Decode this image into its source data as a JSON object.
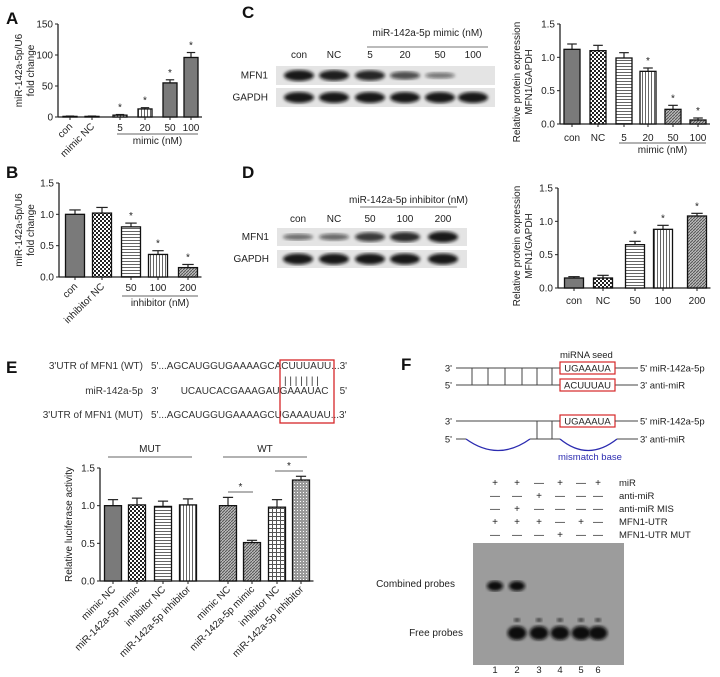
{
  "panels": {
    "A": "A",
    "B": "B",
    "C": "C",
    "D": "D",
    "E": "E",
    "F": "F"
  },
  "chart_data": [
    {
      "id": "A",
      "type": "bar",
      "ylabel": [
        "miR-142a-5p/U6",
        "fold change"
      ],
      "ylim": [
        0,
        150
      ],
      "yticks": [
        "0",
        "50",
        "100",
        "150"
      ],
      "categories": [
        "con",
        "mimic NC",
        "5",
        "20",
        "50",
        "100"
      ],
      "group_label": "mimic (nM)",
      "values": [
        1,
        1,
        3,
        13,
        55,
        96
      ],
      "errors": [
        0.5,
        0.5,
        1,
        2,
        5,
        8
      ],
      "significant": [
        false,
        false,
        true,
        true,
        true,
        true
      ],
      "fill_patterns": [
        "solid",
        "solid",
        "vlines",
        "vlines",
        "solid",
        "solid"
      ]
    },
    {
      "id": "B",
      "type": "bar",
      "ylabel": [
        "miR-142a-5p/U6",
        "fold change"
      ],
      "ylim": [
        0,
        1.5
      ],
      "yticks": [
        "0.0",
        "0.5",
        "1.0",
        "1.5"
      ],
      "categories": [
        "con",
        "inhibitor NC",
        "50",
        "100",
        "200"
      ],
      "group_label": "inhibitor (nM)",
      "values": [
        1.0,
        1.02,
        0.8,
        0.36,
        0.15
      ],
      "errors": [
        0.07,
        0.09,
        0.06,
        0.06,
        0.05
      ],
      "significant": [
        false,
        false,
        true,
        true,
        true
      ],
      "fill_patterns": [
        "solid",
        "checker",
        "hlines",
        "vlines",
        "diag"
      ]
    },
    {
      "id": "C",
      "type": "bar",
      "ylabel": [
        "Relative protein expression",
        "MFN1/GAPDH"
      ],
      "ylim": [
        0,
        1.5
      ],
      "yticks": [
        "0.0",
        "0.5",
        "1.0",
        "1.5"
      ],
      "categories": [
        "con",
        "NC",
        "5",
        "20",
        "50",
        "100"
      ],
      "group_label": "mimic (nM)",
      "values": [
        1.12,
        1.1,
        0.99,
        0.79,
        0.22,
        0.06
      ],
      "errors": [
        0.08,
        0.08,
        0.08,
        0.05,
        0.06,
        0.03
      ],
      "significant": [
        false,
        false,
        false,
        true,
        true,
        true
      ],
      "fill_patterns": [
        "solid",
        "checker",
        "hlines",
        "vlines",
        "diag",
        "diag"
      ]
    },
    {
      "id": "D",
      "type": "bar",
      "ylabel": [
        "Relative protein expression",
        "MFN1/GAPDH"
      ],
      "ylim": [
        0,
        1.5
      ],
      "yticks": [
        "0.0",
        "0.5",
        "1.0",
        "1.5"
      ],
      "categories": [
        "con",
        "NC",
        "50",
        "100",
        "200"
      ],
      "group_label": "",
      "values": [
        0.15,
        0.15,
        0.65,
        0.88,
        1.08
      ],
      "errors": [
        0.02,
        0.04,
        0.05,
        0.06,
        0.04
      ],
      "significant": [
        false,
        false,
        true,
        true,
        true
      ],
      "fill_patterns": [
        "solid",
        "checker",
        "hlines",
        "vlines",
        "diag"
      ]
    },
    {
      "id": "E",
      "type": "bar",
      "ylabel": [
        "Relative luciferase activity"
      ],
      "ylim": [
        0,
        1.5
      ],
      "yticks": [
        "0.0",
        "0.5",
        "1.0",
        "1.5"
      ],
      "groups": [
        "MUT",
        "WT"
      ],
      "categories": [
        "mimic NC",
        "miR-142a-5p mimic",
        "inhibitor NC",
        "miR-142a-5p inhibitor",
        "mimic NC",
        "miR-142a-5p mimic",
        "inhibitor NC",
        "miR-142a-5p inhibitor"
      ],
      "values": [
        1.0,
        1.01,
        0.99,
        1.01,
        1.0,
        0.51,
        0.98,
        1.34
      ],
      "errors": [
        0.08,
        0.09,
        0.07,
        0.08,
        0.11,
        0.03,
        0.1,
        0.05
      ],
      "significance_brackets": [
        {
          "between": [
            "mimic NC",
            "miR-142a-5p mimic"
          ],
          "group": "WT",
          "label": "*"
        },
        {
          "between": [
            "inhibitor NC",
            "miR-142a-5p inhibitor"
          ],
          "group": "WT",
          "label": "*"
        }
      ],
      "fill_patterns": [
        "solid",
        "checker",
        "hlines",
        "vlines",
        "diag",
        "diag",
        "cross",
        "dots"
      ]
    }
  ],
  "blots": {
    "C": {
      "header": "miR-142a-5p mimic (nM)",
      "lanes": [
        "con",
        "NC",
        "5",
        "20",
        "50",
        "100"
      ],
      "rows": [
        "MFN1",
        "GAPDH"
      ],
      "mfn1_intensity": [
        1,
        0.95,
        0.9,
        0.6,
        0.3,
        0
      ]
    },
    "D": {
      "header": "miR-142a-5p inhibitor (nM)",
      "lanes": [
        "con",
        "NC",
        "50",
        "100",
        "200"
      ],
      "rows": [
        "MFN1",
        "GAPDH"
      ],
      "mfn1_intensity": [
        0.35,
        0.4,
        0.75,
        0.85,
        1
      ]
    }
  },
  "sequences": {
    "rows": [
      {
        "label": "3'UTR of MFN1 (WT)",
        "seq": "5'...AGCAUGGUGAAAAGCACUUUAUU...3'"
      },
      {
        "label": "miR-142a-5p",
        "seq": "3'        UCAUCACGAAAGAUGAAAUAC    5'"
      },
      {
        "label": "3'UTR of MFN1 (MUT)",
        "seq": "5'...AGCAUGGUGAAAAGCUGAAAUAU...3'"
      }
    ],
    "pairing": "| | | | | | |",
    "highlight_color": "#d62728"
  },
  "schematic": {
    "seed_label": "miRNA seed",
    "top": {
      "left_a": "3'",
      "left_b": "5'",
      "seed_a": "UGAAAUA",
      "seed_b": "ACUUUAU",
      "right_a": "5'  miR-142a-5p",
      "right_b": "3'  anti-miR"
    },
    "bottom": {
      "left_a": "3'",
      "left_b": "5'",
      "seed_a": "UGAAAUA",
      "right_a": "5'  miR-142a-5p",
      "right_b": "3'  anti-miR",
      "mismatch_label": "mismatch base"
    },
    "mismatch_color": "#2b2bb0"
  },
  "emsa": {
    "conditions": [
      {
        "label": "miR",
        "signs": [
          "+",
          "+",
          "—",
          "+",
          "—",
          "+"
        ]
      },
      {
        "label": "anti-miR",
        "signs": [
          "—",
          "—",
          "+",
          "—",
          "—",
          "—"
        ]
      },
      {
        "label": "anti-miR MIS",
        "signs": [
          "—",
          "+",
          "—",
          "—",
          "—",
          "—"
        ]
      },
      {
        "label": "MFN1-UTR",
        "signs": [
          "+",
          "+",
          "+",
          "—",
          "+",
          "—"
        ]
      },
      {
        "label": "MFN1-UTR MUT",
        "signs": [
          "—",
          "—",
          "—",
          "+",
          "—",
          "—"
        ]
      }
    ],
    "band_labels": [
      "Combined probes",
      "Free probes"
    ],
    "lanes": [
      "1",
      "2",
      "3",
      "4",
      "5",
      "6"
    ],
    "combined_band": [
      1,
      1,
      0,
      0,
      0,
      0
    ],
    "free_band": [
      0,
      1,
      1,
      1,
      1,
      1
    ]
  }
}
